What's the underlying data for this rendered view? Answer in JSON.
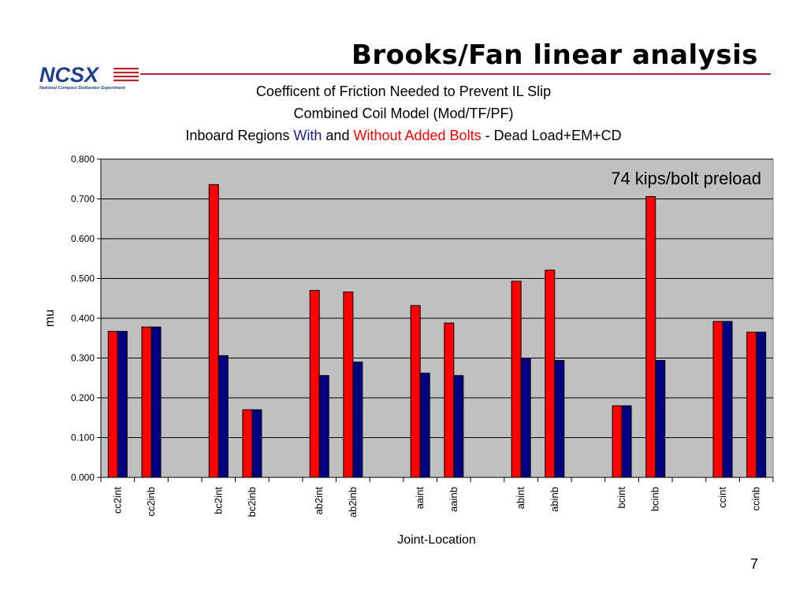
{
  "slide": {
    "title": "Brooks/Fan linear analysis",
    "page_number": "7",
    "logo_text": "NCSX",
    "logo_subtitle": "National Compact Stellarator Experiment"
  },
  "colors": {
    "with_bolts": "#000080",
    "without_bolts": "#ff0000",
    "plot_background": "#c0c0c0",
    "header_rule": "#b3282e"
  },
  "chart_data": {
    "type": "bar",
    "title_line1": "Coefficent of Friction Needed to Prevent IL Slip",
    "title_line2": "Combined Coil Model (Mod/TF/PF)",
    "title_line3": {
      "prefix": "Inboard Regions ",
      "with": "With",
      "and": " and ",
      "without": "Without Added Bolts",
      "suffix": " - Dead Load+EM+CD"
    },
    "annotation": "74 kips/bolt preload",
    "xlabel": "Joint-Location",
    "ylabel": "mu",
    "ylim": [
      0,
      0.8
    ],
    "yticks": [
      "0.000",
      "0.100",
      "0.200",
      "0.300",
      "0.400",
      "0.500",
      "0.600",
      "0.700",
      "0.800"
    ],
    "grid": true,
    "legend": "none",
    "categories": [
      "cc2int",
      "cc2inb",
      "",
      "bc2int",
      "bc2inb",
      "",
      "ab2int",
      "ab2inb",
      "",
      "aaint",
      "aainb",
      "",
      "abint",
      "abinb",
      "",
      "bcint",
      "bcinb",
      "",
      "ccint",
      "ccinb"
    ],
    "series": [
      {
        "color": "#ff0000",
        "values": [
          0.367,
          0.378,
          null,
          0.736,
          0.17,
          null,
          0.47,
          0.466,
          null,
          0.432,
          0.388,
          null,
          0.493,
          0.521,
          null,
          0.18,
          0.706,
          null,
          0.392,
          0.365
        ]
      },
      {
        "color": "#000080",
        "values": [
          0.367,
          0.378,
          null,
          0.306,
          0.17,
          null,
          0.256,
          0.29,
          null,
          0.262,
          0.256,
          null,
          0.3,
          0.294,
          null,
          0.18,
          0.294,
          null,
          0.392,
          0.365
        ]
      }
    ]
  }
}
